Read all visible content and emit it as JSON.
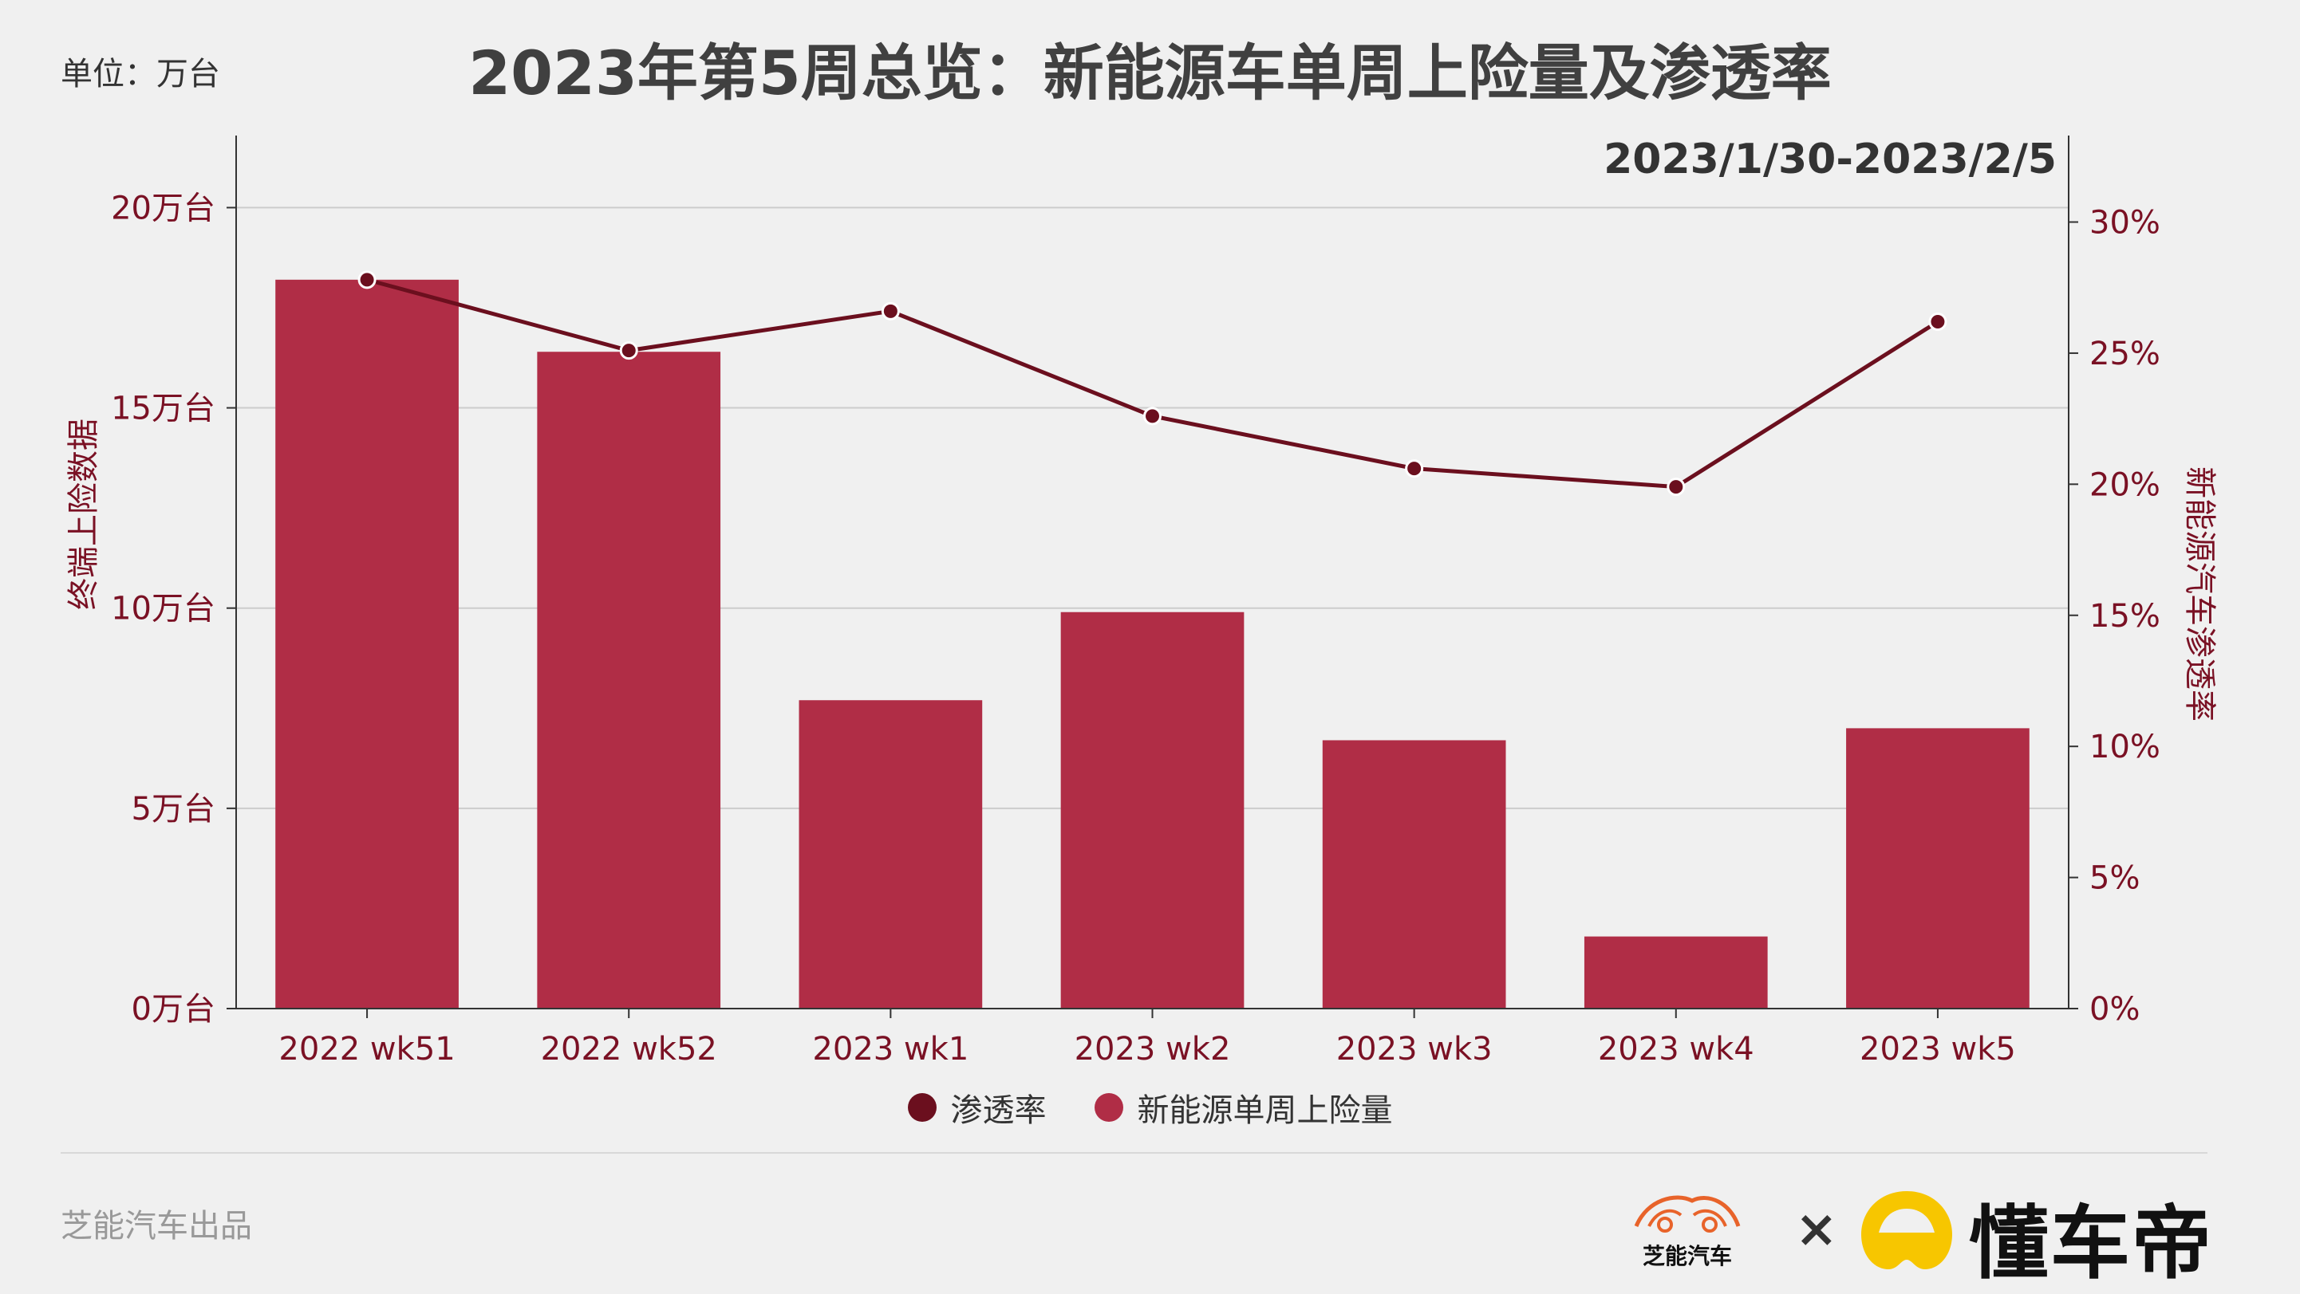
{
  "header": {
    "unit": "单位：万台",
    "title": "2023年第5周总览：新能源车单周上险量及渗透率",
    "date_range": "2023/1/30-2023/2/5"
  },
  "colors": {
    "bar": "#b02d46",
    "line": "#6b0f1e",
    "axis_text": "#7a1124",
    "grid": "#cccccc"
  },
  "chart_data": {
    "type": "bar",
    "categories": [
      "2022 wk51",
      "2022 wk52",
      "2023 wk1",
      "2023 wk2",
      "2023 wk3",
      "2023 wk4",
      "2023 wk5"
    ],
    "series": [
      {
        "name": "新能源单周上险量",
        "type": "bar",
        "axis": "left",
        "values": [
          18.2,
          16.4,
          7.7,
          9.9,
          6.7,
          1.8,
          7.0
        ]
      },
      {
        "name": "渗透率",
        "type": "line",
        "axis": "right",
        "values": [
          27.8,
          25.1,
          26.6,
          22.6,
          20.6,
          19.9,
          26.2
        ]
      }
    ],
    "ylabel": "终端上险数据",
    "ylabel_right": "新能源汽车渗透率",
    "ylim": [
      0,
      21.8
    ],
    "ylim_right": [
      0,
      33.3
    ],
    "yticks": [
      0,
      5,
      10,
      15,
      20
    ],
    "yticks_right": [
      0,
      5,
      10,
      15,
      20,
      25,
      30
    ],
    "ytick_suffix": "万台",
    "ytick_right_suffix": "%",
    "grid": true,
    "legend": [
      "渗透率",
      "新能源单周上险量"
    ],
    "legend_position": "bottom-center"
  },
  "footer": {
    "credit": "芝能汽车出品",
    "logo1_text": "芝能汽车",
    "times": "×",
    "logo2_text": "懂车帝"
  }
}
